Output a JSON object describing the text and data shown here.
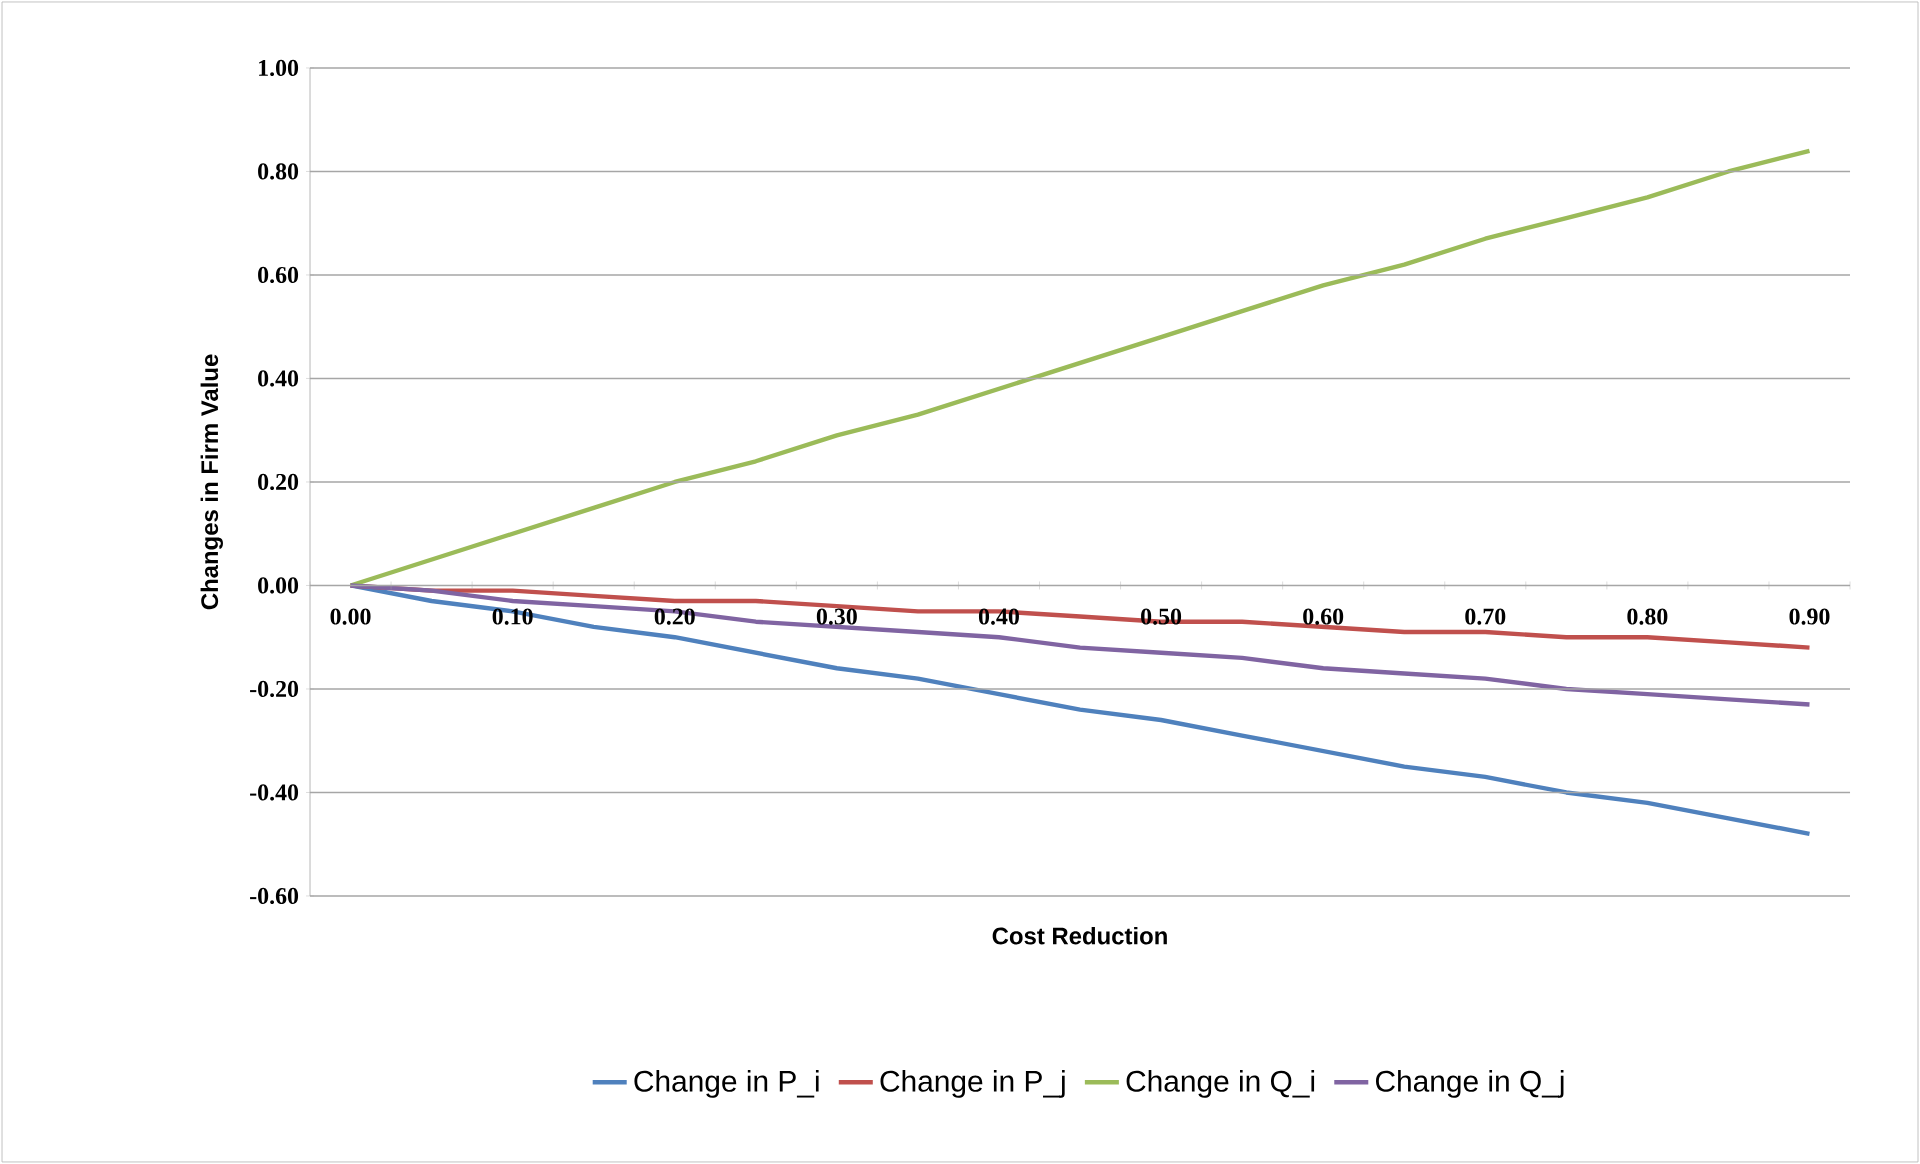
{
  "chart_data": {
    "type": "line",
    "xlabel": "Cost Reduction",
    "ylabel": "Changes in Firm Value",
    "categories": [
      "0.00",
      null,
      "0.10",
      null,
      "0.20",
      null,
      "0.30",
      null,
      "0.40",
      null,
      "0.50",
      null,
      "0.60",
      null,
      "0.70",
      null,
      "0.80",
      null,
      "0.90"
    ],
    "series": [
      {
        "name": "Change in P_i",
        "color": "#4f81bd",
        "values": [
          0,
          -0.03,
          -0.05,
          -0.08,
          -0.1,
          -0.13,
          -0.16,
          -0.18,
          -0.21,
          -0.24,
          -0.26,
          -0.29,
          -0.32,
          -0.35,
          -0.37,
          -0.4,
          -0.42,
          -0.45,
          -0.48
        ]
      },
      {
        "name": "Change in P_j",
        "color": "#c0504d",
        "values": [
          0,
          -0.01,
          -0.01,
          -0.02,
          -0.03,
          -0.03,
          -0.04,
          -0.05,
          -0.05,
          -0.06,
          -0.07,
          -0.07,
          -0.08,
          -0.09,
          -0.09,
          -0.1,
          -0.1,
          -0.11,
          -0.12
        ]
      },
      {
        "name": "Change in Q_i",
        "color": "#9bbb59",
        "values": [
          0,
          0.05,
          0.1,
          0.15,
          0.2,
          0.24,
          0.29,
          0.33,
          0.38,
          0.43,
          0.48,
          0.53,
          0.58,
          0.62,
          0.67,
          0.71,
          0.75,
          0.8,
          0.84
        ]
      },
      {
        "name": "Change in Q_j",
        "color": "#8064a2",
        "values": [
          0,
          -0.01,
          -0.03,
          -0.04,
          -0.05,
          -0.07,
          -0.08,
          -0.09,
          -0.1,
          -0.12,
          -0.13,
          -0.14,
          -0.16,
          -0.17,
          -0.18,
          -0.2,
          -0.21,
          -0.22,
          -0.23
        ]
      }
    ],
    "ylim": [
      -0.6,
      1.0
    ],
    "yticks": [
      {
        "value": -0.6,
        "label": "-0.60"
      },
      {
        "value": -0.4,
        "label": "-0.40"
      },
      {
        "value": -0.2,
        "label": "-0.20"
      },
      {
        "value": 0,
        "label": "0.00"
      },
      {
        "value": 0.2,
        "label": "0.20"
      },
      {
        "value": 0.4,
        "label": "0.40"
      },
      {
        "value": 0.6,
        "label": "0.60"
      },
      {
        "value": 0.8,
        "label": "0.80"
      },
      {
        "value": 1.0,
        "label": "1.00"
      }
    ],
    "grid": "y",
    "legend": "bottom",
    "marker": "none",
    "line_style": "solid"
  }
}
